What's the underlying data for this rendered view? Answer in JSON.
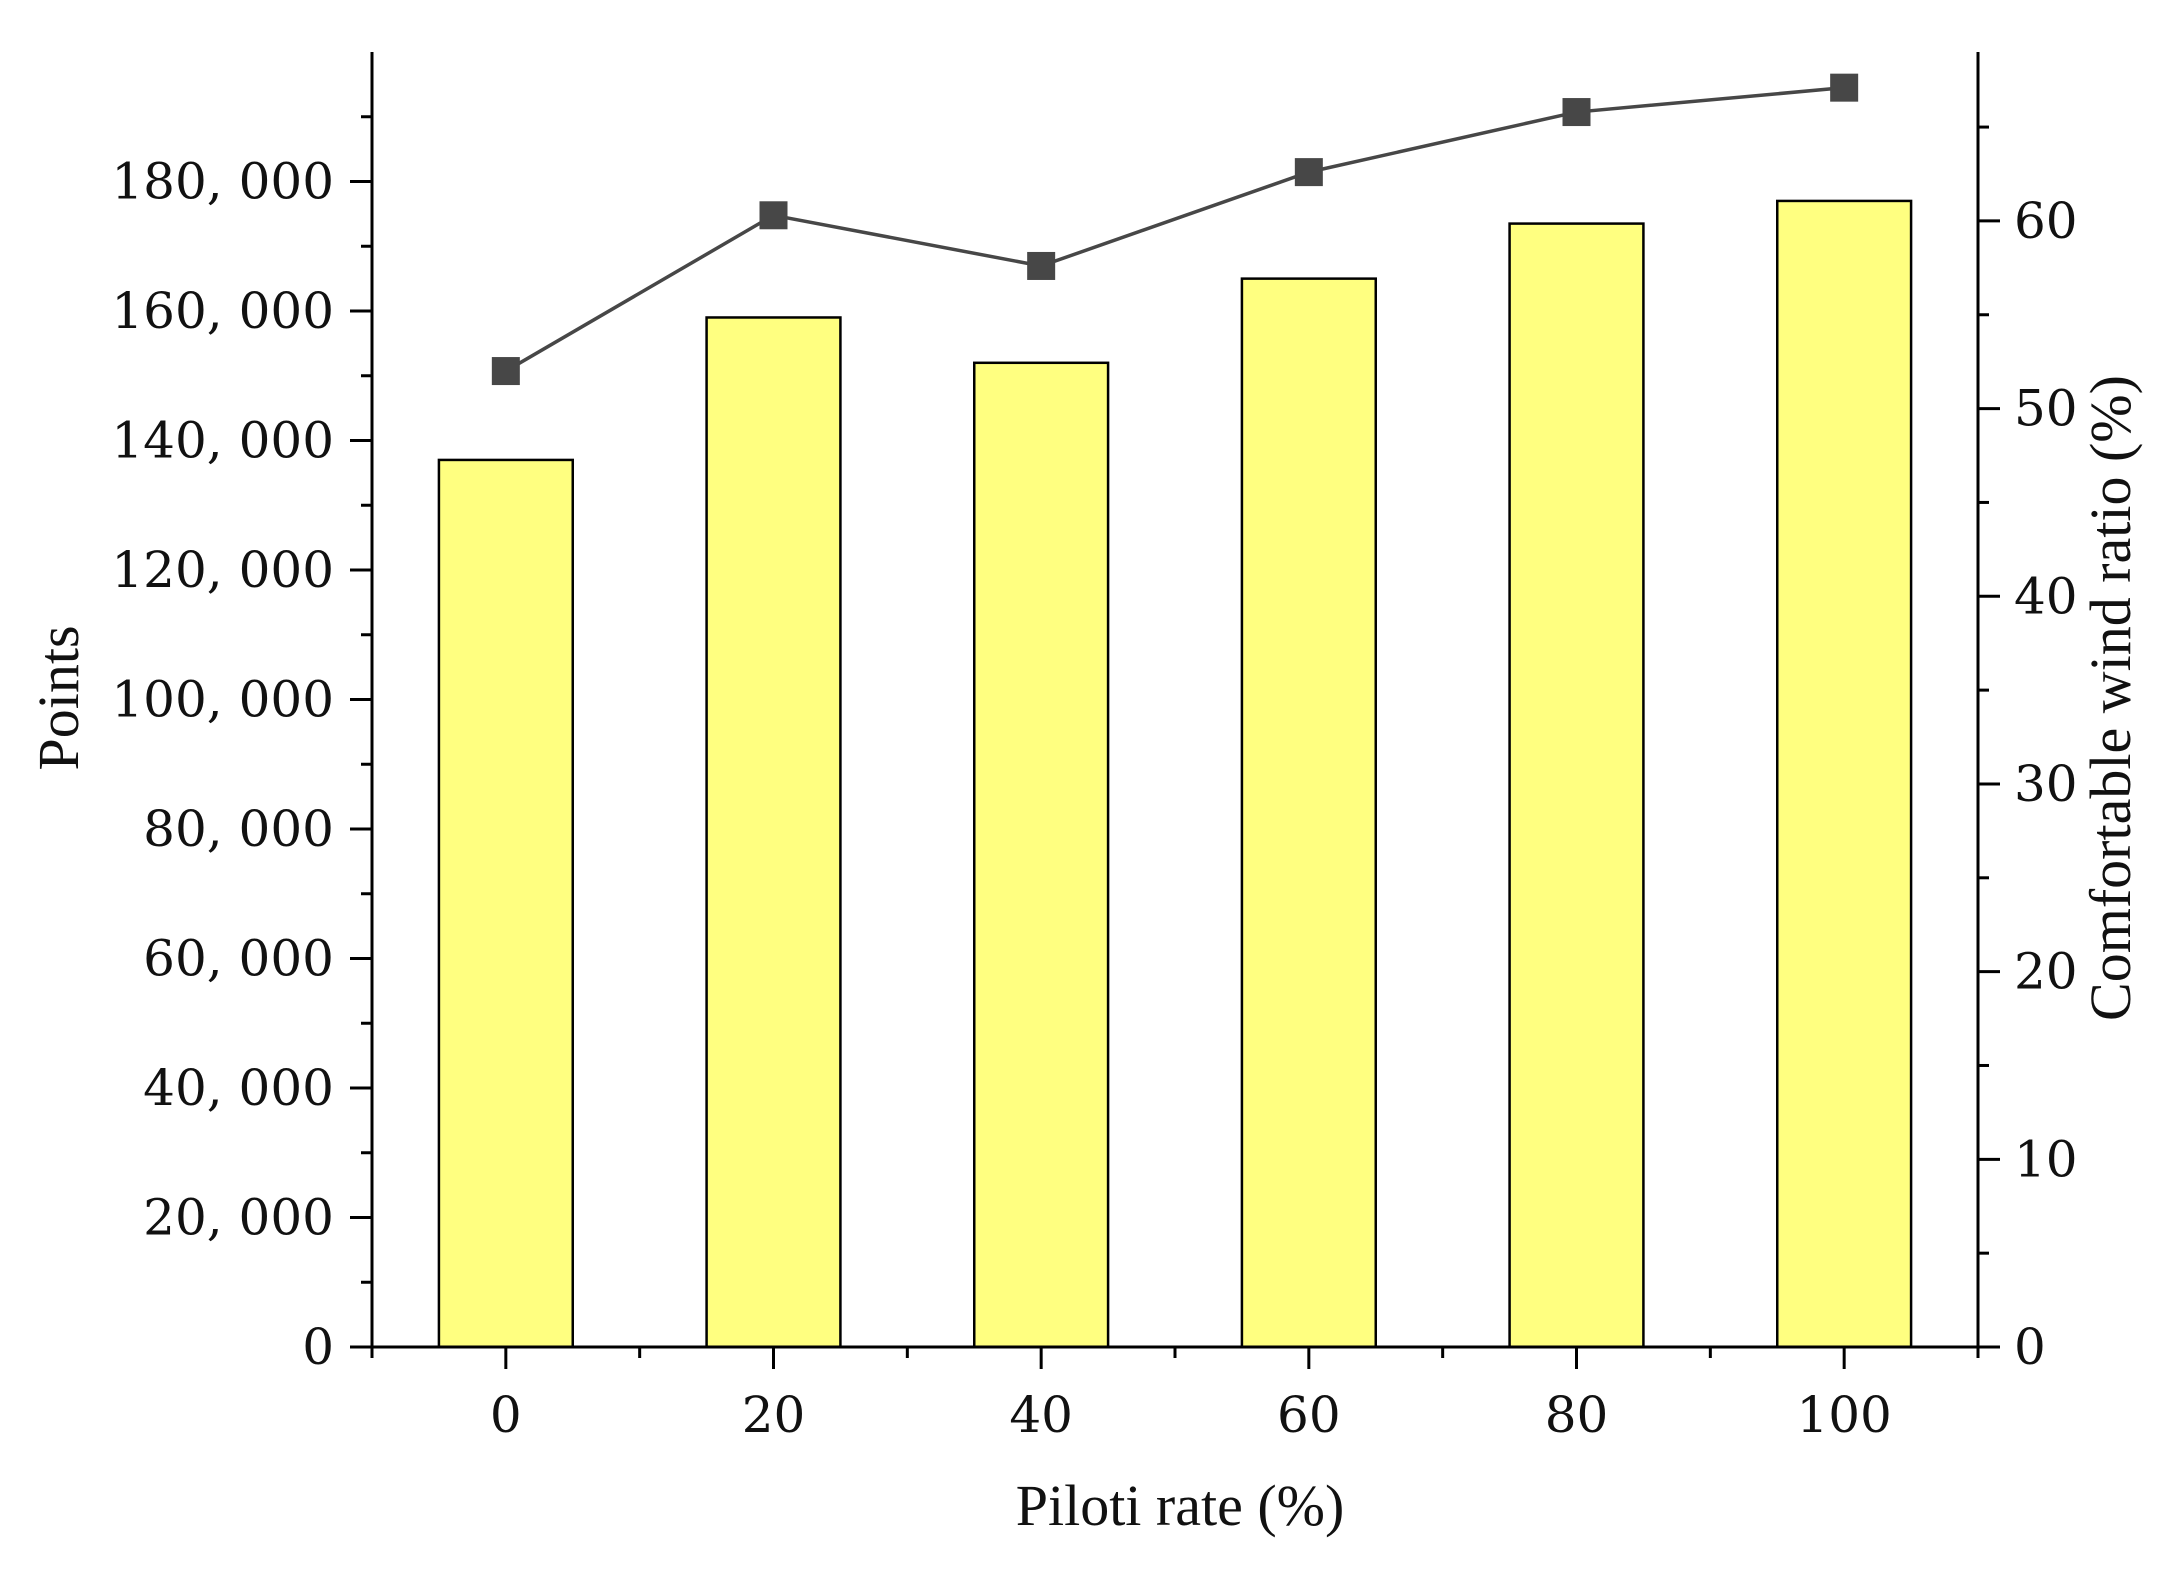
{
  "chart_data": {
    "type": "bar+line",
    "categories": [
      "0",
      "20",
      "40",
      "60",
      "80",
      "100"
    ],
    "series": [
      {
        "name": "Points",
        "kind": "bar",
        "axis": "left",
        "values": [
          137000,
          159000,
          152000,
          165000,
          173500,
          177000
        ],
        "color": "#FFFF80"
      },
      {
        "name": "Comfortable wind ratio (%)",
        "kind": "line",
        "axis": "right",
        "values": [
          52.0,
          60.3,
          57.6,
          62.6,
          65.8,
          67.1
        ],
        "color": "#474747"
      }
    ],
    "xlabel": "Piloti rate (%)",
    "ylabel": "Points",
    "y2label": "Comfortable wind ratio (%)",
    "xlim": [
      -10,
      110
    ],
    "ylim": [
      0,
      200000
    ],
    "y2lim": [
      0,
      69
    ],
    "xticks": [
      0,
      20,
      40,
      60,
      80,
      100
    ],
    "yticks": [
      0,
      20000,
      40000,
      60000,
      80000,
      100000,
      120000,
      140000,
      160000,
      180000
    ],
    "ytick_labels": [
      "0",
      "20, 000",
      "40, 000",
      "60, 000",
      "80, 000",
      "100, 000",
      "120, 000",
      "140, 000",
      "160, 000",
      "180, 000"
    ],
    "y2ticks": [
      0,
      10,
      20,
      30,
      40,
      50,
      60
    ],
    "y2tick_labels": [
      "0",
      "10",
      "20",
      "30",
      "40",
      "50",
      "60"
    ],
    "grid": false
  }
}
